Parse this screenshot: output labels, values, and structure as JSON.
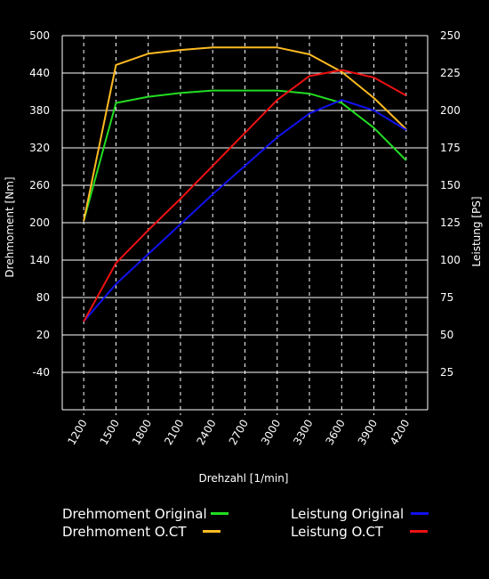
{
  "chart_data": {
    "type": "line",
    "xlabel": "Drehzahl [1/min]",
    "ylabel_left": "Drehmoment [Nm]",
    "ylabel_right": "Leistung [PS]",
    "x": [
      1200,
      1500,
      1800,
      2100,
      2400,
      2700,
      3000,
      3300,
      3600,
      3900,
      4200
    ],
    "xlim": [
      1000,
      4400
    ],
    "ylim_left": [
      -100,
      500
    ],
    "ylim_right": [
      0,
      250
    ],
    "yticks_left": [
      "-40",
      "20",
      "80",
      "140",
      "200",
      "260",
      "320",
      "380",
      "440",
      "500"
    ],
    "yticks_right": [
      "25",
      "50",
      "75",
      "100",
      "125",
      "150",
      "175",
      "200",
      "225",
      "250"
    ],
    "grid": true,
    "legend_position": "bottom",
    "series": [
      {
        "name": "Drehmoment Original",
        "axis": "left",
        "color": "#22dd22",
        "values": [
          203,
          392,
          402,
          408,
          412,
          412,
          412,
          407,
          392,
          352,
          300
        ]
      },
      {
        "name": "Drehmoment O.CT",
        "axis": "left",
        "color": "#ffbb22",
        "values": [
          203,
          453,
          471,
          477,
          481,
          481,
          481,
          470,
          442,
          400,
          350
        ]
      },
      {
        "name": "Leistung Original",
        "axis": "right",
        "color": "#1111ee",
        "values": [
          59,
          84,
          104,
          124,
          144,
          163,
          182,
          198,
          207,
          200,
          187
        ]
      },
      {
        "name": "Leistung O.CT",
        "axis": "right",
        "color": "#ee1111",
        "values": [
          59,
          98,
          120,
          141,
          163,
          185,
          207,
          223,
          227,
          222,
          210
        ]
      }
    ]
  }
}
